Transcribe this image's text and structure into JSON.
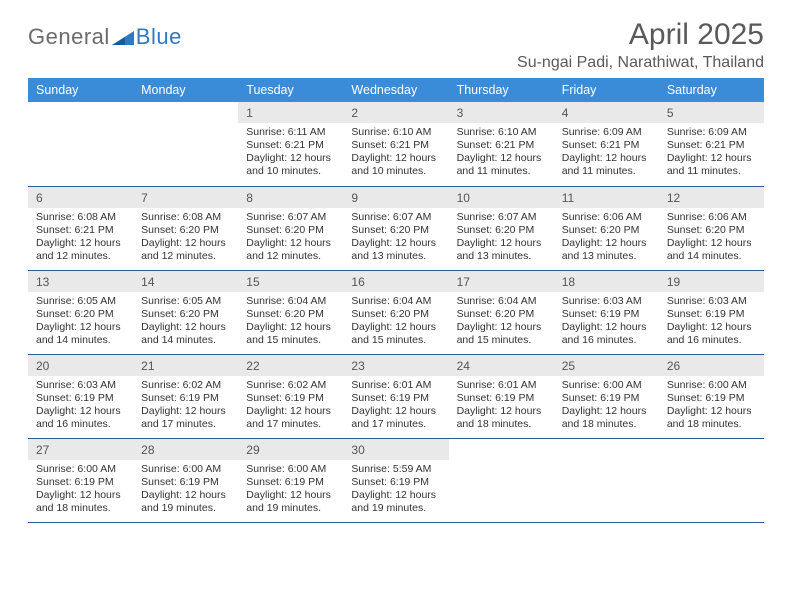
{
  "brand": {
    "word1": "General",
    "word2": "Blue"
  },
  "title": "April 2025",
  "location": "Su-ngai Padi, Narathiwat, Thailand",
  "colors": {
    "header_bg": "#3a8bd8",
    "header_text": "#ffffff",
    "daynum_bg": "#e9e9e9",
    "row_border": "#2d5d8f",
    "brand_gray": "#6b6b6b",
    "brand_blue": "#2f78c2",
    "title_color": "#5a5a5a",
    "body_text": "#333333",
    "background": "#ffffff"
  },
  "weekday_labels": [
    "Sunday",
    "Monday",
    "Tuesday",
    "Wednesday",
    "Thursday",
    "Friday",
    "Saturday"
  ],
  "calendar": {
    "type": "table",
    "columns": 7,
    "weeks": [
      [
        null,
        null,
        {
          "n": "1",
          "sunrise": "6:11 AM",
          "sunset": "6:21 PM",
          "daylight": "12 hours and 10 minutes."
        },
        {
          "n": "2",
          "sunrise": "6:10 AM",
          "sunset": "6:21 PM",
          "daylight": "12 hours and 10 minutes."
        },
        {
          "n": "3",
          "sunrise": "6:10 AM",
          "sunset": "6:21 PM",
          "daylight": "12 hours and 11 minutes."
        },
        {
          "n": "4",
          "sunrise": "6:09 AM",
          "sunset": "6:21 PM",
          "daylight": "12 hours and 11 minutes."
        },
        {
          "n": "5",
          "sunrise": "6:09 AM",
          "sunset": "6:21 PM",
          "daylight": "12 hours and 11 minutes."
        }
      ],
      [
        {
          "n": "6",
          "sunrise": "6:08 AM",
          "sunset": "6:21 PM",
          "daylight": "12 hours and 12 minutes."
        },
        {
          "n": "7",
          "sunrise": "6:08 AM",
          "sunset": "6:20 PM",
          "daylight": "12 hours and 12 minutes."
        },
        {
          "n": "8",
          "sunrise": "6:07 AM",
          "sunset": "6:20 PM",
          "daylight": "12 hours and 12 minutes."
        },
        {
          "n": "9",
          "sunrise": "6:07 AM",
          "sunset": "6:20 PM",
          "daylight": "12 hours and 13 minutes."
        },
        {
          "n": "10",
          "sunrise": "6:07 AM",
          "sunset": "6:20 PM",
          "daylight": "12 hours and 13 minutes."
        },
        {
          "n": "11",
          "sunrise": "6:06 AM",
          "sunset": "6:20 PM",
          "daylight": "12 hours and 13 minutes."
        },
        {
          "n": "12",
          "sunrise": "6:06 AM",
          "sunset": "6:20 PM",
          "daylight": "12 hours and 14 minutes."
        }
      ],
      [
        {
          "n": "13",
          "sunrise": "6:05 AM",
          "sunset": "6:20 PM",
          "daylight": "12 hours and 14 minutes."
        },
        {
          "n": "14",
          "sunrise": "6:05 AM",
          "sunset": "6:20 PM",
          "daylight": "12 hours and 14 minutes."
        },
        {
          "n": "15",
          "sunrise": "6:04 AM",
          "sunset": "6:20 PM",
          "daylight": "12 hours and 15 minutes."
        },
        {
          "n": "16",
          "sunrise": "6:04 AM",
          "sunset": "6:20 PM",
          "daylight": "12 hours and 15 minutes."
        },
        {
          "n": "17",
          "sunrise": "6:04 AM",
          "sunset": "6:20 PM",
          "daylight": "12 hours and 15 minutes."
        },
        {
          "n": "18",
          "sunrise": "6:03 AM",
          "sunset": "6:19 PM",
          "daylight": "12 hours and 16 minutes."
        },
        {
          "n": "19",
          "sunrise": "6:03 AM",
          "sunset": "6:19 PM",
          "daylight": "12 hours and 16 minutes."
        }
      ],
      [
        {
          "n": "20",
          "sunrise": "6:03 AM",
          "sunset": "6:19 PM",
          "daylight": "12 hours and 16 minutes."
        },
        {
          "n": "21",
          "sunrise": "6:02 AM",
          "sunset": "6:19 PM",
          "daylight": "12 hours and 17 minutes."
        },
        {
          "n": "22",
          "sunrise": "6:02 AM",
          "sunset": "6:19 PM",
          "daylight": "12 hours and 17 minutes."
        },
        {
          "n": "23",
          "sunrise": "6:01 AM",
          "sunset": "6:19 PM",
          "daylight": "12 hours and 17 minutes."
        },
        {
          "n": "24",
          "sunrise": "6:01 AM",
          "sunset": "6:19 PM",
          "daylight": "12 hours and 18 minutes."
        },
        {
          "n": "25",
          "sunrise": "6:00 AM",
          "sunset": "6:19 PM",
          "daylight": "12 hours and 18 minutes."
        },
        {
          "n": "26",
          "sunrise": "6:00 AM",
          "sunset": "6:19 PM",
          "daylight": "12 hours and 18 minutes."
        }
      ],
      [
        {
          "n": "27",
          "sunrise": "6:00 AM",
          "sunset": "6:19 PM",
          "daylight": "12 hours and 18 minutes."
        },
        {
          "n": "28",
          "sunrise": "6:00 AM",
          "sunset": "6:19 PM",
          "daylight": "12 hours and 19 minutes."
        },
        {
          "n": "29",
          "sunrise": "6:00 AM",
          "sunset": "6:19 PM",
          "daylight": "12 hours and 19 minutes."
        },
        {
          "n": "30",
          "sunrise": "5:59 AM",
          "sunset": "6:19 PM",
          "daylight": "12 hours and 19 minutes."
        },
        null,
        null,
        null
      ]
    ]
  },
  "labels": {
    "sunrise": "Sunrise:",
    "sunset": "Sunset:",
    "daylight": "Daylight:"
  }
}
